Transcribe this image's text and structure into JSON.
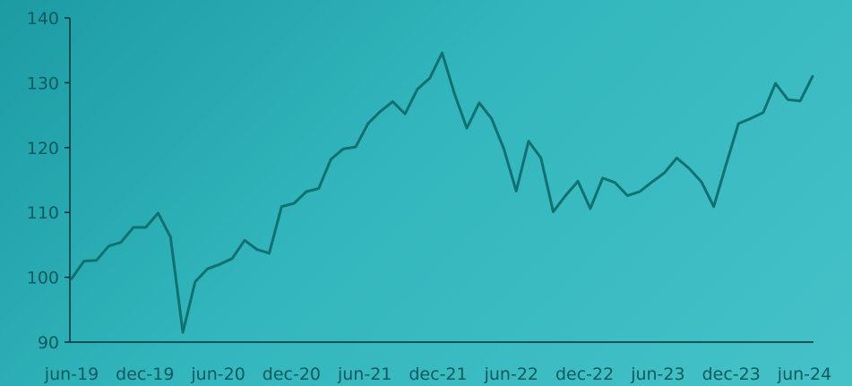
{
  "chart_data": {
    "type": "line",
    "title": "",
    "xlabel": "",
    "ylabel": "",
    "ylim": [
      90,
      140
    ],
    "yticks": [
      "90",
      "100",
      "110",
      "120",
      "130",
      "140"
    ],
    "xticks": [
      "jun-19",
      "dec-19",
      "jun-20",
      "dec-20",
      "jun-21",
      "dec-21",
      "jun-22",
      "dec-22",
      "jun-23",
      "dec-23",
      "jun-24"
    ],
    "grid": false,
    "legend": "none",
    "colors": {
      "line": "#117070",
      "axis": "#0e2f33",
      "text": "#0e5a5e"
    },
    "series": [
      {
        "values": [
          99.8,
          102.5,
          102.6,
          104.8,
          105.4,
          107.7,
          107.7,
          109.9,
          106.2,
          91.5,
          99.3,
          101.3,
          102.0,
          102.9,
          105.7,
          104.3,
          103.7,
          110.9,
          111.4,
          113.2,
          113.7,
          118.2,
          119.8,
          120.1,
          123.7,
          125.6,
          127.1,
          125.2,
          129.0,
          130.7,
          134.6,
          128.3,
          123.0,
          126.9,
          124.5,
          119.8,
          113.3,
          121.0,
          118.4,
          110.1,
          112.6,
          114.8,
          110.6,
          115.3,
          114.6,
          112.6,
          113.2,
          114.7,
          116.1,
          118.4,
          116.8,
          114.7,
          110.9,
          117.4,
          123.7,
          124.5,
          125.4,
          129.9,
          127.4,
          127.2,
          131.0
        ]
      }
    ]
  }
}
